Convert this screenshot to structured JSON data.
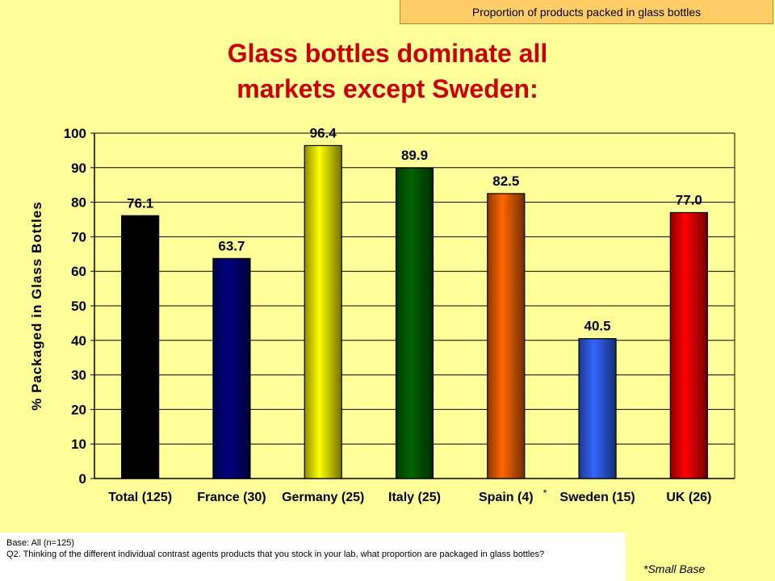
{
  "tag_label": "Proportion of products packed in glass bottles",
  "title_line1": "Glass bottles dominate all",
  "title_line2": "markets except Sweden:",
  "chart_data": {
    "type": "bar",
    "categories": [
      "Total (125)",
      "France (30)",
      "Germany (25)",
      "Italy (25)",
      "Spain (4)",
      "Sweden (15)",
      "UK (26)"
    ],
    "category_notes": [
      "",
      "",
      "",
      "",
      "*",
      "",
      ""
    ],
    "values": [
      76.1,
      63.7,
      96.4,
      89.9,
      82.5,
      40.5,
      77.0
    ],
    "value_labels": [
      "76.1",
      "63.7",
      "96.4",
      "89.9",
      "82.5",
      "40.5",
      "77.0"
    ],
    "bar_colors": [
      "#000000",
      "#000080",
      "#FFFF00",
      "#006600",
      "#FF6600",
      "#3366FF",
      "#FF0000"
    ],
    "ylabel": "% Packaged in Glass Bottles",
    "ylim": [
      0,
      100
    ],
    "yticks": [
      0,
      10,
      20,
      30,
      40,
      50,
      60,
      70,
      80,
      90,
      100
    ],
    "grid": true
  },
  "footer": {
    "base": "Base: All (n=125)",
    "question": "Q2. Thinking of the different individual contrast agents products that you stock in your lab, what proportion are packaged in glass bottles?"
  },
  "small_base_note": "*Small Base"
}
